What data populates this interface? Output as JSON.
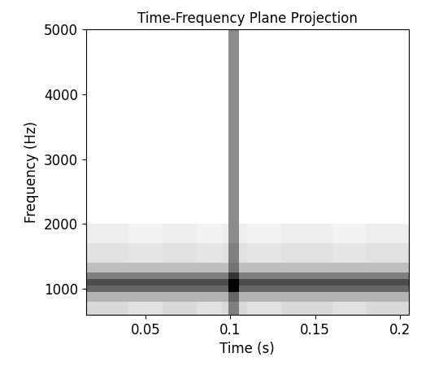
{
  "chart_data": {
    "type": "heatmap",
    "title": "Time-Frequency Plane Projection",
    "x_label": "Time (s)",
    "y_label": "Frequency (Hz)",
    "xlim": [
      0.015,
      0.205
    ],
    "ylim": [
      600,
      5000
    ],
    "xticks": [
      0.05,
      0.1,
      0.15,
      0.2
    ],
    "yticks": [
      1000,
      2000,
      3000,
      4000,
      5000
    ],
    "x_edges": [
      0.015,
      0.04,
      0.06,
      0.08,
      0.095,
      0.099,
      0.105,
      0.11,
      0.13,
      0.16,
      0.18,
      0.205
    ],
    "y_edges": [
      600,
      800,
      950,
      1050,
      1150,
      1250,
      1400,
      1700,
      2000,
      3000,
      4000,
      5000
    ],
    "cells": [
      [
        0.15,
        0.12,
        0.15,
        0.12,
        0.15,
        0.5,
        0.15,
        0.12,
        0.15,
        0.12,
        0.15
      ],
      [
        0.3,
        0.3,
        0.3,
        0.3,
        0.3,
        0.6,
        0.3,
        0.3,
        0.3,
        0.3,
        0.3
      ],
      [
        0.6,
        0.6,
        0.6,
        0.6,
        0.6,
        1.0,
        0.6,
        0.6,
        0.6,
        0.6,
        0.6
      ],
      [
        0.7,
        0.7,
        0.7,
        0.7,
        0.7,
        1.0,
        0.7,
        0.7,
        0.7,
        0.7,
        0.7
      ],
      [
        0.5,
        0.5,
        0.5,
        0.5,
        0.5,
        0.8,
        0.5,
        0.5,
        0.5,
        0.5,
        0.5
      ],
      [
        0.25,
        0.25,
        0.25,
        0.25,
        0.25,
        0.55,
        0.25,
        0.25,
        0.25,
        0.25,
        0.25
      ],
      [
        0.12,
        0.1,
        0.12,
        0.1,
        0.12,
        0.5,
        0.12,
        0.1,
        0.12,
        0.1,
        0.12
      ],
      [
        0.07,
        0.05,
        0.07,
        0.05,
        0.07,
        0.45,
        0.07,
        0.05,
        0.07,
        0.05,
        0.07
      ],
      [
        0.0,
        0.0,
        0.0,
        0.0,
        0.0,
        0.45,
        0.0,
        0.0,
        0.0,
        0.0,
        0.0
      ],
      [
        0.0,
        0.0,
        0.0,
        0.0,
        0.0,
        0.45,
        0.0,
        0.0,
        0.0,
        0.0,
        0.0
      ],
      [
        0.0,
        0.0,
        0.0,
        0.0,
        0.0,
        0.45,
        0.0,
        0.0,
        0.0,
        0.0,
        0.0
      ]
    ]
  }
}
